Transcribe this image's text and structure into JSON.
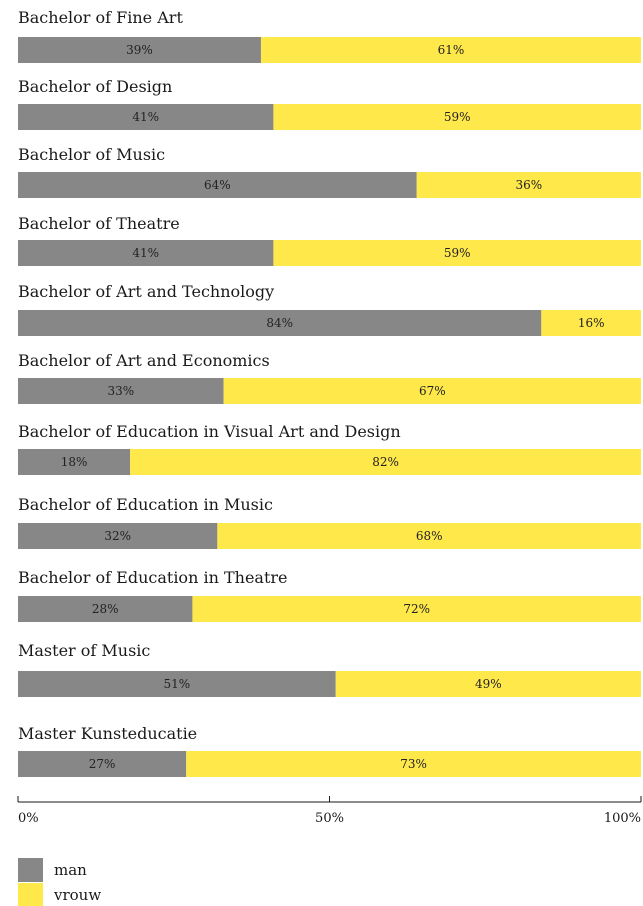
{
  "chart_data": {
    "type": "bar",
    "orientation": "horizontal",
    "stacked": true,
    "categories": [
      "Bachelor of Fine Art",
      "Bachelor of Design",
      "Bachelor of Music",
      "Bachelor of Theatre",
      "Bachelor of Art and Technology",
      "Bachelor of Art and Economics",
      "Bachelor of Education in Visual Art and Design",
      "Bachelor of Education in Music",
      "Bachelor of Education in Theatre",
      "Master of Music",
      "Master Kunsteducatie"
    ],
    "series": [
      {
        "name": "man",
        "color": "#878787",
        "values": [
          39,
          41,
          64,
          41,
          84,
          33,
          18,
          32,
          28,
          51,
          27
        ]
      },
      {
        "name": "vrouw",
        "color": "#ffe84a",
        "values": [
          61,
          59,
          36,
          59,
          16,
          67,
          82,
          68,
          72,
          49,
          73
        ]
      }
    ],
    "value_suffix": "%",
    "xlim": [
      0,
      100
    ],
    "xticks": [
      {
        "value": 0,
        "label": "0%"
      },
      {
        "value": 50,
        "label": "50%"
      },
      {
        "value": 100,
        "label": "100%"
      }
    ],
    "legend_position": "bottom-left",
    "grid": false
  }
}
